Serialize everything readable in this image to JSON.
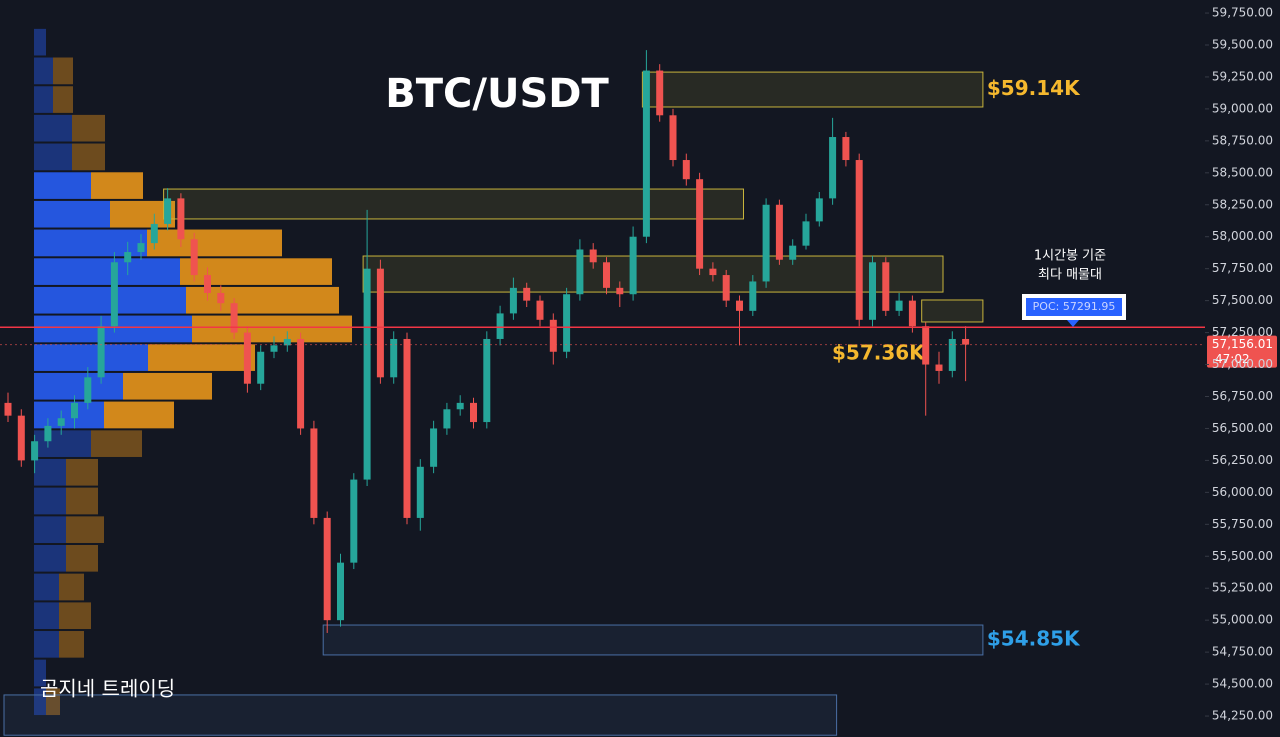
{
  "chart_data": {
    "type": "candlestick",
    "title": "BTC/USDT",
    "ylim": [
      54086,
      59852
    ],
    "yticks": [
      {
        "value": 54250,
        "label": "54,250.00"
      },
      {
        "value": 54500,
        "label": "54,500.00"
      },
      {
        "value": 54750,
        "label": "54,750.00"
      },
      {
        "value": 55000,
        "label": "55,000.00"
      },
      {
        "value": 55250,
        "label": "55,250.00"
      },
      {
        "value": 55500,
        "label": "55,500.00"
      },
      {
        "value": 55750,
        "label": "55,750.00"
      },
      {
        "value": 56000,
        "label": "56,000.00"
      },
      {
        "value": 56250,
        "label": "56,250.00"
      },
      {
        "value": 56500,
        "label": "56,500.00"
      },
      {
        "value": 56750,
        "label": "56,750.00"
      },
      {
        "value": 57000,
        "label": "57,000.00"
      },
      {
        "value": 57250,
        "label": "57,250.00"
      },
      {
        "value": 57500,
        "label": "57,500.00"
      },
      {
        "value": 57750,
        "label": "57,750.00"
      },
      {
        "value": 58000,
        "label": "58,000.00"
      },
      {
        "value": 58250,
        "label": "58,250.00"
      },
      {
        "value": 58500,
        "label": "58,500.00"
      },
      {
        "value": 58750,
        "label": "58,750.00"
      },
      {
        "value": 59000,
        "label": "59,000.00"
      },
      {
        "value": 59250,
        "label": "59,250.00"
      },
      {
        "value": 59500,
        "label": "59,500.00"
      },
      {
        "value": 59750,
        "label": "59,750.00"
      }
    ],
    "grid": false,
    "up_color": "#26a69a",
    "down_color": "#ef5350",
    "ohlc": [
      [
        56700,
        56780,
        56550,
        56600
      ],
      [
        56600,
        56650,
        56200,
        56250
      ],
      [
        56250,
        56450,
        56150,
        56400
      ],
      [
        56400,
        56580,
        56350,
        56520
      ],
      [
        56520,
        56640,
        56450,
        56580
      ],
      [
        56580,
        56760,
        56500,
        56700
      ],
      [
        56700,
        56980,
        56650,
        56900
      ],
      [
        56900,
        57380,
        56850,
        57300
      ],
      [
        57300,
        57880,
        57250,
        57800
      ],
      [
        57800,
        57960,
        57700,
        57880
      ],
      [
        57880,
        58020,
        57820,
        57950
      ],
      [
        57950,
        58180,
        57900,
        58100
      ],
      [
        58100,
        58380,
        58050,
        58300
      ],
      [
        58300,
        58340,
        57920,
        57980
      ],
      [
        57980,
        58030,
        57650,
        57700
      ],
      [
        57700,
        57760,
        57500,
        57560
      ],
      [
        57560,
        57620,
        57420,
        57480
      ],
      [
        57480,
        57520,
        57200,
        57250
      ],
      [
        57250,
        57300,
        56780,
        56850
      ],
      [
        56850,
        57150,
        56800,
        57100
      ],
      [
        57100,
        57220,
        57050,
        57150
      ],
      [
        57150,
        57260,
        57100,
        57200
      ],
      [
        57200,
        57250,
        56450,
        56500
      ],
      [
        56500,
        56560,
        55750,
        55800
      ],
      [
        55800,
        55850,
        54900,
        55000
      ],
      [
        55000,
        55520,
        54950,
        55450
      ],
      [
        55450,
        56150,
        55400,
        56100
      ],
      [
        56100,
        58210,
        56050,
        57750
      ],
      [
        57750,
        57820,
        56850,
        56900
      ],
      [
        56900,
        57260,
        56850,
        57200
      ],
      [
        57200,
        57250,
        55750,
        55800
      ],
      [
        55800,
        56260,
        55700,
        56200
      ],
      [
        56200,
        56560,
        56150,
        56500
      ],
      [
        56500,
        56700,
        56450,
        56650
      ],
      [
        56650,
        56760,
        56600,
        56700
      ],
      [
        56700,
        56740,
        56500,
        56550
      ],
      [
        56550,
        57260,
        56500,
        57200
      ],
      [
        57200,
        57460,
        57150,
        57400
      ],
      [
        57400,
        57680,
        57350,
        57600
      ],
      [
        57600,
        57640,
        57450,
        57500
      ],
      [
        57500,
        57540,
        57300,
        57350
      ],
      [
        57350,
        57400,
        57000,
        57100
      ],
      [
        57100,
        57600,
        57050,
        57550
      ],
      [
        57550,
        57980,
        57500,
        57900
      ],
      [
        57900,
        57950,
        57750,
        57800
      ],
      [
        57800,
        57840,
        57550,
        57600
      ],
      [
        57600,
        57650,
        57450,
        57550
      ],
      [
        57550,
        58080,
        57500,
        58000
      ],
      [
        58000,
        59460,
        57950,
        59300
      ],
      [
        59300,
        59350,
        58900,
        58950
      ],
      [
        58950,
        59000,
        58550,
        58600
      ],
      [
        58600,
        58650,
        58400,
        58450
      ],
      [
        58450,
        58500,
        57700,
        57750
      ],
      [
        57750,
        57800,
        57650,
        57700
      ],
      [
        57700,
        57740,
        57450,
        57500
      ],
      [
        57500,
        57540,
        57150,
        57420
      ],
      [
        57420,
        57700,
        57380,
        57650
      ],
      [
        57650,
        58300,
        57600,
        58250
      ],
      [
        58250,
        58290,
        57780,
        57820
      ],
      [
        57820,
        57980,
        57780,
        57930
      ],
      [
        57930,
        58180,
        57900,
        58120
      ],
      [
        58120,
        58350,
        58080,
        58300
      ],
      [
        58300,
        58930,
        58250,
        58780
      ],
      [
        58780,
        58820,
        58550,
        58600
      ],
      [
        58600,
        58650,
        57300,
        57350
      ],
      [
        57350,
        57850,
        57300,
        57800
      ],
      [
        57800,
        57840,
        57380,
        57420
      ],
      [
        57420,
        57560,
        57380,
        57500
      ],
      [
        57500,
        57540,
        57250,
        57300
      ],
      [
        57300,
        57330,
        56600,
        57000
      ],
      [
        57000,
        57100,
        56850,
        56950
      ],
      [
        56950,
        57260,
        56900,
        57200
      ],
      [
        57200,
        57300,
        56870,
        57156.01
      ]
    ],
    "volume_profile": {
      "bins": [
        54250,
        54474,
        54699,
        54923,
        55147,
        55372,
        55596,
        55820,
        56045,
        56269,
        56493,
        56718,
        56942,
        57166,
        57391,
        57615,
        57839,
        58064,
        58288,
        58512,
        58737,
        58961,
        59185,
        59410,
        59634
      ],
      "buy": [
        12,
        12,
        25,
        25,
        25,
        32,
        32,
        32,
        32,
        57,
        70,
        89,
        114,
        158,
        152,
        146,
        113,
        76,
        57,
        38,
        38,
        19,
        19,
        12
      ],
      "sell": [
        14,
        0,
        25,
        32,
        25,
        32,
        38,
        32,
        32,
        51,
        70,
        89,
        107,
        160,
        153,
        152,
        135,
        65,
        52,
        33,
        33,
        20,
        20,
        0
      ],
      "buy_color": "#2962ff",
      "sell_color": "#f59c1a",
      "value_area": [
        10,
        18
      ]
    },
    "zones": [
      {
        "top": 59288,
        "bottom": 59015,
        "from": 48,
        "to": 73,
        "color": "#c8b43c",
        "value": 59140,
        "label": "$59.14K"
      },
      {
        "top": 58373,
        "bottom": 58139,
        "from": 12,
        "to": 55,
        "color": "#c8b43c"
      },
      {
        "top": 57849,
        "bottom": 57567,
        "from": 27,
        "to": 70,
        "color": "#c8b43c"
      },
      {
        "top": 57505,
        "bottom": 57333,
        "from": 69,
        "to": 73,
        "color": "#c8b43c",
        "value": 57360,
        "label": "$57.36K"
      },
      {
        "top": 54962,
        "bottom": 54728,
        "from": 24,
        "to": 73,
        "color": "#4a6fa5",
        "value": 54850,
        "label": "$54.85K"
      },
      {
        "top": 54415,
        "bottom": 54100,
        "from": 0,
        "to": 62,
        "color": "#4a6fa5"
      }
    ],
    "poc": {
      "value": 57291.95,
      "label": "POC: 57291.95"
    },
    "last_price": {
      "value": 57156.01,
      "label": "57,156.01",
      "countdown": "47:02"
    },
    "note": [
      "1시간봉 기준",
      "최다 매물대"
    ],
    "watermark": "곰지네 트레이딩"
  }
}
